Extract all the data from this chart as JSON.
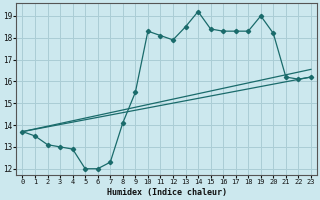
{
  "xlabel": "Humidex (Indice chaleur)",
  "background_color": "#cce8ee",
  "grid_color": "#aacdd5",
  "line_color": "#1a6b6b",
  "xlim": [
    -0.5,
    23.5
  ],
  "ylim": [
    11.7,
    19.6
  ],
  "yticks": [
    12,
    13,
    14,
    15,
    16,
    17,
    18,
    19
  ],
  "xticks": [
    0,
    1,
    2,
    3,
    4,
    5,
    6,
    7,
    8,
    9,
    10,
    11,
    12,
    13,
    14,
    15,
    16,
    17,
    18,
    19,
    20,
    21,
    22,
    23
  ],
  "line1_x": [
    0,
    1,
    2,
    3,
    4,
    5,
    6,
    7,
    8,
    9,
    10,
    11,
    12,
    13,
    14,
    15,
    16,
    17,
    18,
    19,
    20,
    21,
    22,
    23
  ],
  "line1_y": [
    13.7,
    13.5,
    13.1,
    13.0,
    12.9,
    12.0,
    12.0,
    12.3,
    14.1,
    15.5,
    18.3,
    18.1,
    17.9,
    18.5,
    19.2,
    18.4,
    18.3,
    18.3,
    18.3,
    19.0,
    18.2,
    16.2,
    16.1,
    16.2
  ],
  "line2_x": [
    0,
    23
  ],
  "line2_y": [
    13.7,
    16.2
  ],
  "line3_x": [
    0,
    23
  ],
  "line3_y": [
    13.7,
    16.2
  ]
}
